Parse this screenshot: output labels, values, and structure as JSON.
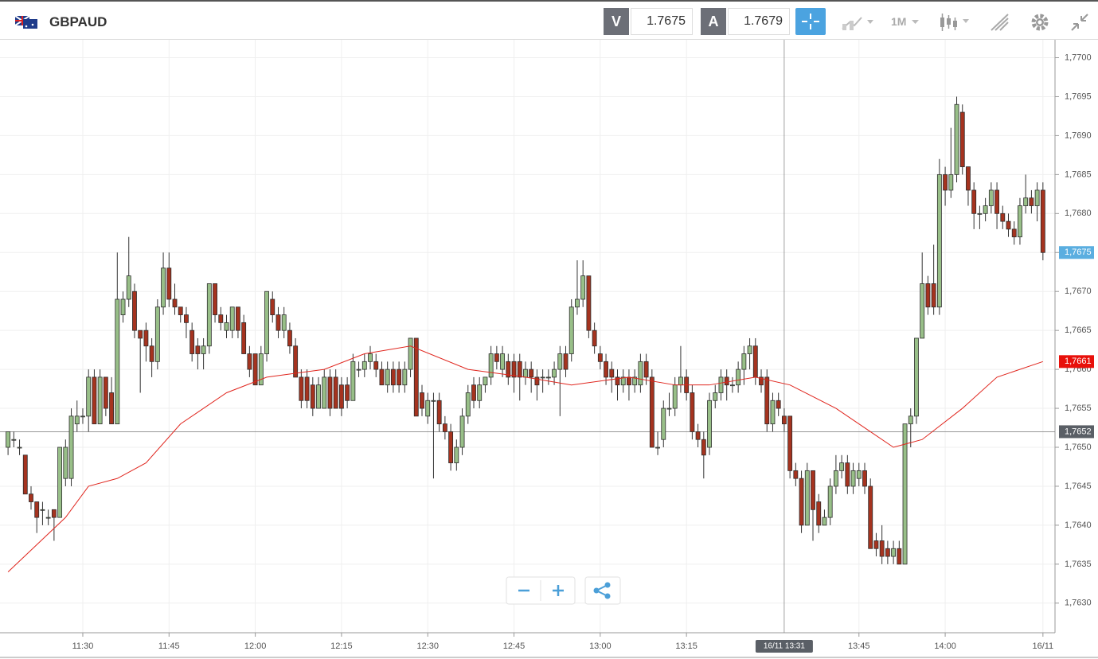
{
  "header": {
    "symbol": "GBPAUD",
    "bid_label": "V",
    "bid": "1.7675",
    "ask_label": "A",
    "ask": "1.7679",
    "timeframe": "1M"
  },
  "chart_data": {
    "type": "candlestick",
    "up_color": "#98bf88",
    "down_color": "#a5331f",
    "ma_color": "#e0261e",
    "xlim": [
      -1.4,
      182.1
    ],
    "ylim": [
      1.76262,
      1.77023
    ],
    "grid": true,
    "xticks": [
      {
        "value": 13,
        "label": "11:30"
      },
      {
        "value": 28,
        "label": "11:45"
      },
      {
        "value": 43,
        "label": "12:00"
      },
      {
        "value": 58,
        "label": "12:15"
      },
      {
        "value": 73,
        "label": "12:30"
      },
      {
        "value": 88,
        "label": "12:45"
      },
      {
        "value": 103,
        "label": "13:00"
      },
      {
        "value": 118,
        "label": "13:15"
      },
      {
        "value": 148,
        "label": "13:45"
      },
      {
        "value": 163,
        "label": "14:00"
      },
      {
        "value": 180,
        "label": "16/11"
      }
    ],
    "yticks": [
      {
        "value": 1.763,
        "label": "1,7630"
      },
      {
        "value": 1.7635,
        "label": "1,7635"
      },
      {
        "value": 1.764,
        "label": "1,7640"
      },
      {
        "value": 1.7645,
        "label": "1,7645"
      },
      {
        "value": 1.765,
        "label": "1,7650"
      },
      {
        "value": 1.7655,
        "label": "1,7655"
      },
      {
        "value": 1.766,
        "label": "1,7660"
      },
      {
        "value": 1.7665,
        "label": "1,7665"
      },
      {
        "value": 1.767,
        "label": "1,7670"
      },
      {
        "value": 1.7675,
        "label": "1,7675"
      },
      {
        "value": 1.768,
        "label": "1,7680"
      },
      {
        "value": 1.7685,
        "label": "1,7685"
      },
      {
        "value": 1.769,
        "label": "1,7690"
      },
      {
        "value": 1.7695,
        "label": "1,7695"
      },
      {
        "value": 1.77,
        "label": "1,7700"
      }
    ],
    "open": [
      1.765,
      1.7651,
      1.765,
      1.7649,
      1.7644,
      1.7643,
      1.7642,
      1.7641,
      1.7642,
      1.7641,
      1.7646,
      1.7646,
      1.7653,
      1.7654,
      1.7654,
      1.7659,
      1.7653,
      1.7659,
      1.7657,
      1.7653,
      1.7667,
      1.7669,
      1.767,
      1.7665,
      1.7665,
      1.7663,
      1.7661,
      1.7668,
      1.7673,
      1.7669,
      1.7668,
      1.7667,
      1.7665,
      1.7663,
      1.7662,
      1.7663,
      1.7671,
      1.7667,
      1.7665,
      1.7665,
      1.7668,
      1.7666,
      1.7662,
      1.7662,
      1.7658,
      1.7662,
      1.7669,
      1.7667,
      1.7665,
      1.7665,
      1.7663,
      1.7659,
      1.7659,
      1.7658,
      1.7655,
      1.7655,
      1.7659,
      1.7659,
      1.7658,
      1.7658,
      1.7656,
      1.766,
      1.766,
      1.7661,
      1.7661,
      1.766,
      1.7658,
      1.766,
      1.766,
      1.7658,
      1.766,
      1.7664,
      1.7657,
      1.7654,
      1.7656,
      1.7656,
      1.7653,
      1.7652,
      1.7648,
      1.765,
      1.7654,
      1.7658,
      1.7656,
      1.7658,
      1.7659,
      1.7662,
      1.766,
      1.7661,
      1.7661,
      1.7661,
      1.7659,
      1.766,
      1.7659,
      1.7659,
      1.7659,
      1.7659,
      1.766,
      1.7662,
      1.7662,
      1.7668,
      1.7669,
      1.7672,
      1.7665,
      1.7662,
      1.7661,
      1.766,
      1.7659,
      1.7658,
      1.7659,
      1.7658,
      1.7658,
      1.7661,
      1.7659,
      1.765,
      1.7651,
      1.7655,
      1.7655,
      1.7658,
      1.7659,
      1.7657,
      1.7652,
      1.7651,
      1.765,
      1.7656,
      1.7657,
      1.7659,
      1.7658,
      1.7658,
      1.766,
      1.7662,
      1.7663,
      1.7659,
      1.7659,
      1.7653,
      1.7656,
      1.7654,
      1.7654,
      1.7647,
      1.7646,
      1.764,
      1.7647,
      1.7643,
      1.764,
      1.7641,
      1.7645,
      1.7647,
      1.7648,
      1.7645,
      1.7646,
      1.7647,
      1.7645,
      1.7638,
      1.7638,
      1.7637,
      1.7636,
      1.7637,
      1.7635,
      1.7653,
      1.7654,
      1.7664,
      1.7671,
      1.7671,
      1.7668,
      1.7685,
      1.7683,
      1.7685,
      1.7693,
      1.7686,
      1.7683,
      1.768,
      1.768,
      1.7681,
      1.7683,
      1.768,
      1.7679,
      1.7678,
      1.7677,
      1.7681,
      1.7682,
      1.7681,
      1.7683
    ],
    "high": [
      1.7652,
      1.7652,
      1.7651,
      1.7649,
      1.7645,
      1.7643,
      1.7643,
      1.7642,
      1.7642,
      1.765,
      1.7651,
      1.7655,
      1.7656,
      1.7655,
      1.766,
      1.766,
      1.766,
      1.7659,
      1.7659,
      1.7675,
      1.767,
      1.7677,
      1.7671,
      1.7665,
      1.7666,
      1.7664,
      1.7669,
      1.7675,
      1.7675,
      1.7671,
      1.7668,
      1.7668,
      1.7666,
      1.7664,
      1.7664,
      1.7671,
      1.7671,
      1.7668,
      1.7667,
      1.7668,
      1.7668,
      1.7667,
      1.7663,
      1.7662,
      1.7663,
      1.767,
      1.767,
      1.7668,
      1.7668,
      1.7666,
      1.7664,
      1.766,
      1.766,
      1.7659,
      1.7659,
      1.766,
      1.766,
      1.766,
      1.7659,
      1.7659,
      1.7662,
      1.7661,
      1.7662,
      1.7663,
      1.7662,
      1.7661,
      1.7661,
      1.7661,
      1.7661,
      1.7661,
      1.7664,
      1.7664,
      1.7658,
      1.7657,
      1.7657,
      1.7657,
      1.7654,
      1.7653,
      1.7651,
      1.7655,
      1.7658,
      1.7659,
      1.7659,
      1.7659,
      1.7663,
      1.7663,
      1.7663,
      1.7662,
      1.7662,
      1.7662,
      1.7661,
      1.7661,
      1.766,
      1.766,
      1.766,
      1.7661,
      1.7663,
      1.7663,
      1.7669,
      1.7674,
      1.7674,
      1.7672,
      1.7666,
      1.7663,
      1.7662,
      1.7661,
      1.766,
      1.766,
      1.766,
      1.766,
      1.7662,
      1.7662,
      1.766,
      1.7652,
      1.7656,
      1.7657,
      1.7659,
      1.7663,
      1.766,
      1.7658,
      1.7653,
      1.7652,
      1.7657,
      1.7658,
      1.766,
      1.766,
      1.7659,
      1.7661,
      1.7663,
      1.7664,
      1.7664,
      1.766,
      1.766,
      1.7657,
      1.7657,
      1.7655,
      1.7654,
      1.7648,
      1.7647,
      1.7648,
      1.7647,
      1.7644,
      1.7642,
      1.7646,
      1.7649,
      1.7649,
      1.7649,
      1.7648,
      1.7648,
      1.7648,
      1.7646,
      1.7639,
      1.764,
      1.7638,
      1.7638,
      1.7638,
      1.7653,
      1.7655,
      1.7664,
      1.7675,
      1.7672,
      1.7676,
      1.7687,
      1.7686,
      1.7691,
      1.7695,
      1.7694,
      1.7686,
      1.7684,
      1.7681,
      1.7682,
      1.7684,
      1.7684,
      1.7681,
      1.768,
      1.7679,
      1.7682,
      1.7685,
      1.7683,
      1.7684,
      1.7684
    ],
    "low": [
      1.7649,
      1.765,
      1.7649,
      1.7644,
      1.7642,
      1.7639,
      1.764,
      1.764,
      1.7638,
      1.7641,
      1.7645,
      1.7645,
      1.7652,
      1.7653,
      1.7652,
      1.7653,
      1.7653,
      1.7654,
      1.7653,
      1.7653,
      1.7666,
      1.7668,
      1.7664,
      1.7657,
      1.7661,
      1.7659,
      1.766,
      1.7667,
      1.7668,
      1.7667,
      1.7666,
      1.7664,
      1.7661,
      1.766,
      1.766,
      1.7662,
      1.7666,
      1.7665,
      1.7664,
      1.7664,
      1.7664,
      1.7662,
      1.7659,
      1.7658,
      1.7658,
      1.7661,
      1.7666,
      1.7664,
      1.7664,
      1.7662,
      1.7659,
      1.7655,
      1.7655,
      1.7654,
      1.7655,
      1.7655,
      1.7654,
      1.7655,
      1.7654,
      1.7655,
      1.7656,
      1.7659,
      1.7659,
      1.766,
      1.7659,
      1.7658,
      1.7657,
      1.7657,
      1.7657,
      1.7657,
      1.7659,
      1.7654,
      1.7654,
      1.7653,
      1.7646,
      1.7652,
      1.7651,
      1.7647,
      1.7647,
      1.7649,
      1.7653,
      1.7655,
      1.7655,
      1.7657,
      1.7658,
      1.766,
      1.7659,
      1.7658,
      1.7657,
      1.7656,
      1.7658,
      1.7657,
      1.7656,
      1.7657,
      1.7658,
      1.7658,
      1.7654,
      1.7659,
      1.7661,
      1.7667,
      1.7668,
      1.7664,
      1.7662,
      1.766,
      1.7658,
      1.7657,
      1.7656,
      1.7657,
      1.7656,
      1.7657,
      1.7657,
      1.7658,
      1.765,
      1.7649,
      1.765,
      1.7654,
      1.7654,
      1.7657,
      1.7656,
      1.7651,
      1.765,
      1.7646,
      1.7649,
      1.7655,
      1.7656,
      1.7656,
      1.7657,
      1.7657,
      1.7658,
      1.766,
      1.7658,
      1.7657,
      1.7652,
      1.7652,
      1.7654,
      1.7652,
      1.7646,
      1.7645,
      1.7639,
      1.764,
      1.7638,
      1.7639,
      1.764,
      1.764,
      1.7644,
      1.7646,
      1.7644,
      1.7644,
      1.7645,
      1.7644,
      1.7637,
      1.7636,
      1.7635,
      1.7635,
      1.7635,
      1.7635,
      1.7635,
      1.765,
      1.7653,
      1.7664,
      1.7667,
      1.7667,
      1.7667,
      1.7681,
      1.7682,
      1.7684,
      1.7685,
      1.7681,
      1.7678,
      1.7678,
      1.7679,
      1.768,
      1.7678,
      1.7678,
      1.7677,
      1.7676,
      1.7676,
      1.768,
      1.768,
      1.7679,
      1.7674
    ],
    "close": [
      1.7652,
      1.7651,
      1.765,
      1.7644,
      1.7643,
      1.7641,
      1.7642,
      1.7641,
      1.7641,
      1.765,
      1.765,
      1.7654,
      1.7654,
      1.7654,
      1.7659,
      1.7653,
      1.7659,
      1.7655,
      1.7653,
      1.7669,
      1.7669,
      1.7672,
      1.7665,
      1.7664,
      1.7663,
      1.7661,
      1.7668,
      1.7673,
      1.7669,
      1.7668,
      1.7667,
      1.7666,
      1.7662,
      1.7662,
      1.7663,
      1.7671,
      1.7667,
      1.7666,
      1.7666,
      1.7668,
      1.7665,
      1.7662,
      1.766,
      1.7658,
      1.7662,
      1.767,
      1.7667,
      1.7665,
      1.7667,
      1.7663,
      1.7659,
      1.7656,
      1.7656,
      1.7655,
      1.7658,
      1.7659,
      1.7655,
      1.7655,
      1.7655,
      1.7656,
      1.7661,
      1.766,
      1.7661,
      1.7662,
      1.766,
      1.7658,
      1.766,
      1.7658,
      1.7658,
      1.766,
      1.7664,
      1.7654,
      1.7655,
      1.7656,
      1.7656,
      1.7653,
      1.7652,
      1.7648,
      1.765,
      1.7654,
      1.7657,
      1.7656,
      1.7658,
      1.7659,
      1.7662,
      1.7661,
      1.7662,
      1.7659,
      1.7659,
      1.7659,
      1.766,
      1.7659,
      1.7658,
      1.7659,
      1.7659,
      1.766,
      1.7662,
      1.766,
      1.7668,
      1.7669,
      1.7672,
      1.7665,
      1.7663,
      1.7661,
      1.7659,
      1.7659,
      1.7658,
      1.7659,
      1.7658,
      1.7659,
      1.7661,
      1.7659,
      1.765,
      1.765,
      1.7655,
      1.7655,
      1.7658,
      1.7659,
      1.7657,
      1.7652,
      1.7651,
      1.7649,
      1.7656,
      1.7657,
      1.7659,
      1.7658,
      1.7658,
      1.766,
      1.7662,
      1.7663,
      1.7659,
      1.7658,
      1.7653,
      1.7656,
      1.7655,
      1.7653,
      1.7647,
      1.7646,
      1.764,
      1.7647,
      1.7642,
      1.764,
      1.7641,
      1.7645,
      1.7647,
      1.7648,
      1.7645,
      1.7647,
      1.7647,
      1.7645,
      1.7637,
      1.7637,
      1.7636,
      1.7636,
      1.7637,
      1.7635,
      1.7653,
      1.7654,
      1.7664,
      1.7671,
      1.7668,
      1.7668,
      1.7685,
      1.7683,
      1.7685,
      1.7694,
      1.7686,
      1.7683,
      1.768,
      1.768,
      1.7681,
      1.7683,
      1.768,
      1.7679,
      1.7678,
      1.7677,
      1.7681,
      1.7682,
      1.7681,
      1.7683,
      1.7675
    ],
    "ma": {
      "x": [
        0,
        10,
        14,
        19,
        24,
        30,
        38,
        45,
        55,
        62,
        70,
        80,
        90,
        98,
        108,
        116,
        122,
        130,
        136,
        144,
        150,
        154,
        159,
        166,
        172,
        180
      ],
      "values": [
        1.7634,
        1.7641,
        1.7645,
        1.7646,
        1.7648,
        1.7653,
        1.7657,
        1.7659,
        1.766,
        1.7662,
        1.7663,
        1.766,
        1.7659,
        1.7658,
        1.7659,
        1.7658,
        1.7658,
        1.7659,
        1.7658,
        1.7655,
        1.7652,
        1.765,
        1.7651,
        1.7655,
        1.7659,
        1.7661
      ]
    },
    "last_price": {
      "value": 1.7675,
      "label": "1,7675",
      "color": "#5aaee0"
    },
    "ma_last": {
      "value": 1.7661,
      "label": "1,7661",
      "color": "#e8100a"
    },
    "crosshair": {
      "x": 135,
      "x_label": "16/11 13:31",
      "y": 1.7652,
      "y_label": "1,7652",
      "color": "#5a5f66"
    }
  }
}
